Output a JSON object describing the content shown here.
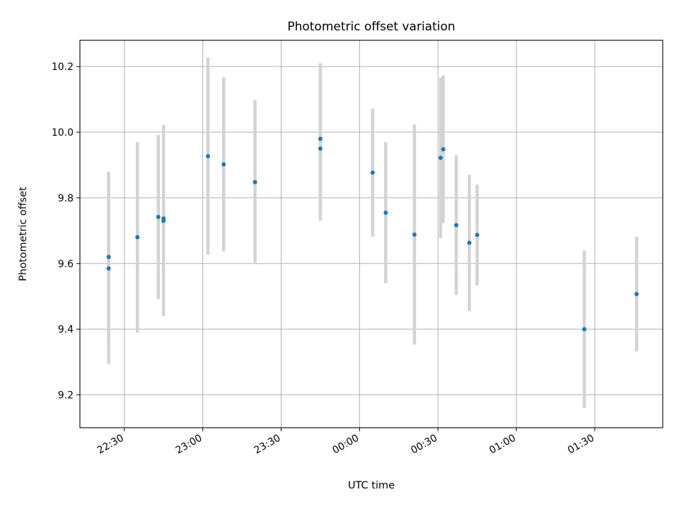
{
  "chart_data": {
    "type": "scatter",
    "title": "Photometric offset variation",
    "xlabel": "UTC time",
    "ylabel": "Photometric offset",
    "x_tick_labels": [
      "22:30",
      "23:00",
      "23:30",
      "00:00",
      "00:30",
      "01:00",
      "01:30"
    ],
    "y_ticks": [
      9.2,
      9.4,
      9.6,
      9.8,
      10.0,
      10.2
    ],
    "y_tick_labels": [
      "9.2",
      "9.4",
      "9.6",
      "9.8",
      "10.0",
      "10.2"
    ],
    "x_range": [
      "22:13",
      "01:56"
    ],
    "ylim": [
      9.1,
      10.28
    ],
    "grid": true,
    "marker_color": "#1f77b4",
    "errorbar_color": "#d3d3d3",
    "points": [
      {
        "x": "22:24",
        "y": 9.585,
        "yerr": 0.29
      },
      {
        "x": "22:24",
        "y": 9.62,
        "yerr": 0.26
      },
      {
        "x": "22:35",
        "y": 9.68,
        "yerr": 0.29
      },
      {
        "x": "22:43",
        "y": 9.742,
        "yerr": 0.25
      },
      {
        "x": "22:45",
        "y": 9.73,
        "yerr": 0.29
      },
      {
        "x": "22:45",
        "y": 9.737,
        "yerr": 0.285
      },
      {
        "x": "23:02",
        "y": 9.927,
        "yerr": 0.3
      },
      {
        "x": "23:08",
        "y": 9.902,
        "yerr": 0.265
      },
      {
        "x": "23:20",
        "y": 9.848,
        "yerr": 0.25
      },
      {
        "x": "23:45",
        "y": 9.95,
        "yerr": 0.22
      },
      {
        "x": "23:45",
        "y": 9.98,
        "yerr": 0.23
      },
      {
        "x": "00:05",
        "y": 9.877,
        "yerr": 0.195
      },
      {
        "x": "00:10",
        "y": 9.755,
        "yerr": 0.215
      },
      {
        "x": "00:21",
        "y": 9.688,
        "yerr": 0.335
      },
      {
        "x": "00:31",
        "y": 9.922,
        "yerr": 0.245
      },
      {
        "x": "00:32",
        "y": 9.948,
        "yerr": 0.225
      },
      {
        "x": "00:37",
        "y": 9.717,
        "yerr": 0.213
      },
      {
        "x": "00:42",
        "y": 9.663,
        "yerr": 0.208
      },
      {
        "x": "00:45",
        "y": 9.687,
        "yerr": 0.154
      },
      {
        "x": "01:26",
        "y": 9.4,
        "yerr": 0.24
      },
      {
        "x": "01:46",
        "y": 9.507,
        "yerr": 0.175
      }
    ]
  }
}
